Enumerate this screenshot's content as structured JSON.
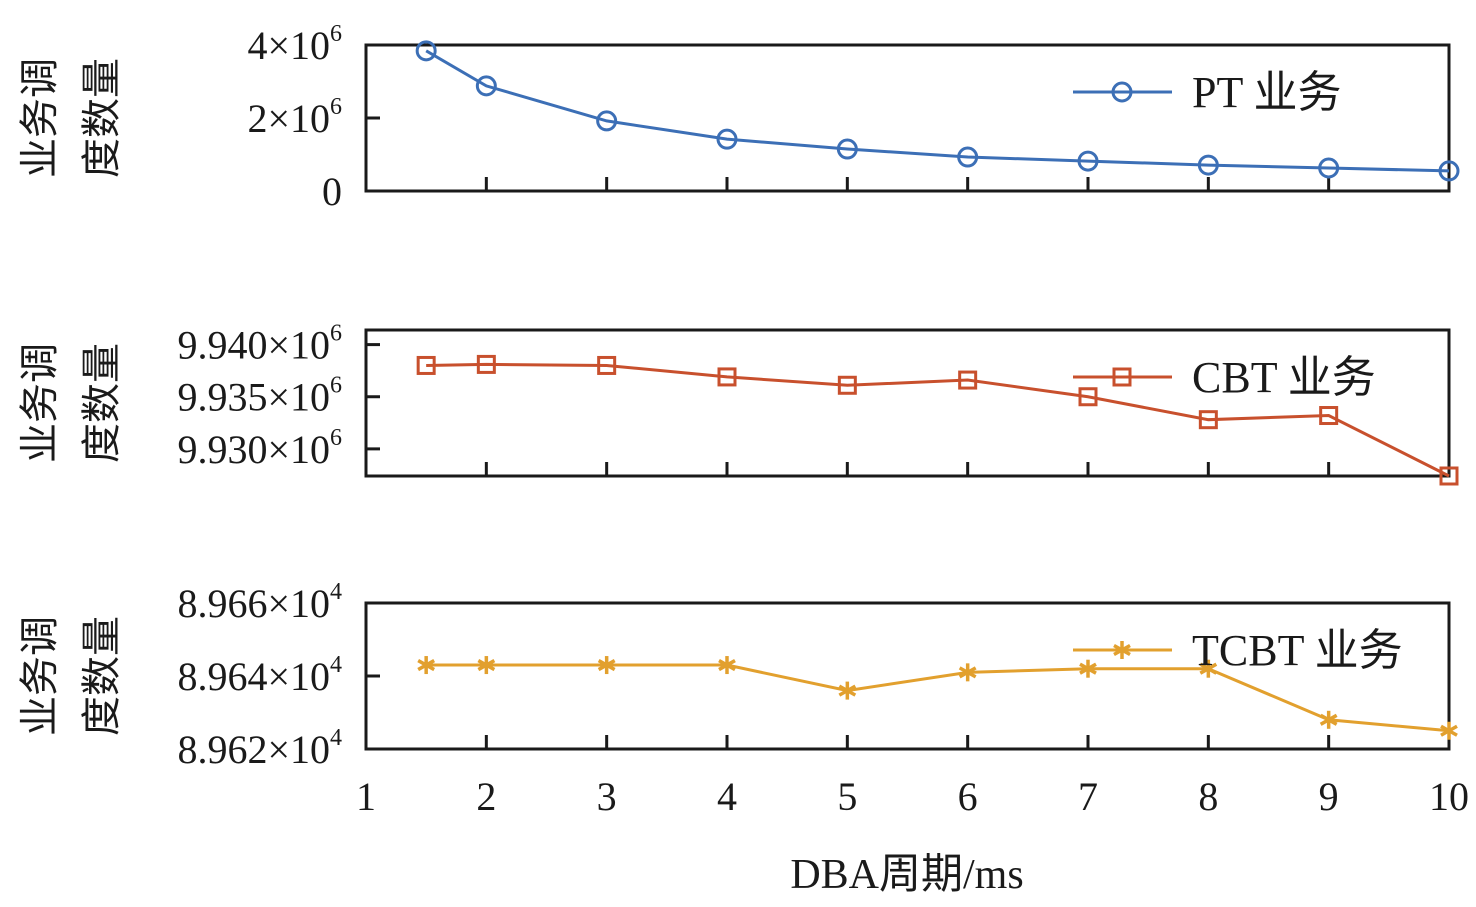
{
  "chart_data": [
    {
      "type": "line",
      "panel": "PT",
      "ylabel_lines": [
        "业务调",
        "度数量"
      ],
      "ylim": [
        0,
        4000000
      ],
      "yticks": [
        {
          "value": 0,
          "mantissa": "0",
          "exp": ""
        },
        {
          "value": 2000000,
          "mantissa": "2×10",
          "exp": "6"
        },
        {
          "value": 4000000,
          "mantissa": "4×10",
          "exp": "6"
        }
      ],
      "legend": {
        "label": "PT 业务",
        "position": "top-right"
      },
      "series": [
        {
          "name": "PT 业务",
          "color": "#3c6fb6",
          "marker": "circle",
          "x": [
            1.5,
            2,
            3,
            4,
            5,
            6,
            7,
            8,
            9,
            10
          ],
          "values": [
            3840000,
            2880000,
            1920000,
            1420000,
            1150000,
            930000,
            820000,
            710000,
            630000,
            550000
          ]
        }
      ]
    },
    {
      "type": "line",
      "panel": "CBT",
      "ylabel_lines": [
        "业务调",
        "度数量"
      ],
      "ylim": [
        9927400,
        9941400
      ],
      "yticks": [
        {
          "value": 9930000,
          "mantissa": "9.930×10",
          "exp": "6"
        },
        {
          "value": 9935000,
          "mantissa": "9.935×10",
          "exp": "6"
        },
        {
          "value": 9940000,
          "mantissa": "9.940×10",
          "exp": "6"
        }
      ],
      "legend": {
        "label": "CBT 业务",
        "position": "top-right"
      },
      "series": [
        {
          "name": "CBT 业务",
          "color": "#c8502d",
          "marker": "square",
          "x": [
            1.5,
            2,
            3,
            4,
            5,
            6,
            7,
            8,
            9,
            10
          ],
          "values": [
            9938000,
            9938100,
            9938000,
            9936900,
            9936100,
            9936600,
            9935000,
            9932800,
            9933200,
            9927400
          ]
        }
      ]
    },
    {
      "type": "line",
      "panel": "TCBT",
      "ylabel_lines": [
        "业务调",
        "度数量"
      ],
      "ylim": [
        89620,
        89660
      ],
      "yticks": [
        {
          "value": 89620,
          "mantissa": "8.962×10",
          "exp": "4"
        },
        {
          "value": 89640,
          "mantissa": "8.964×10",
          "exp": "4"
        },
        {
          "value": 89660,
          "mantissa": "8.966×10",
          "exp": "4"
        }
      ],
      "legend": {
        "label": "TCBT 业务",
        "position": "top-right"
      },
      "series": [
        {
          "name": "TCBT 业务",
          "color": "#e2a02e",
          "marker": "asterisk",
          "x": [
            1.5,
            2,
            3,
            4,
            5,
            6,
            7,
            8,
            9,
            10
          ],
          "values": [
            89643,
            89643,
            89643,
            89643,
            89636,
            89641,
            89642,
            89642,
            89628,
            89625
          ]
        }
      ]
    }
  ],
  "xaxis": {
    "xlim": [
      1,
      10
    ],
    "ticks": [
      "1",
      "2",
      "3",
      "4",
      "5",
      "6",
      "7",
      "8",
      "9",
      "10"
    ],
    "label": "DBA周期/ms"
  }
}
